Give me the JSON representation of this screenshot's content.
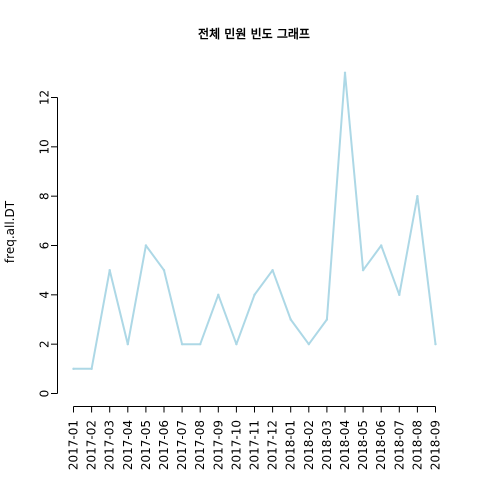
{
  "chart_data": {
    "type": "line",
    "title": "전체 민원 빈도 그래프",
    "xlabel": "",
    "ylabel": "freq.all.DT",
    "categories": [
      "2017-01",
      "2017-02",
      "2017-03",
      "2017-04",
      "2017-05",
      "2017-06",
      "2017-07",
      "2017-08",
      "2017-09",
      "2017-10",
      "2017-11",
      "2017-12",
      "2018-01",
      "2018-02",
      "2018-03",
      "2018-04",
      "2018-05",
      "2018-06",
      "2018-07",
      "2018-08",
      "2018-09"
    ],
    "series": [
      {
        "values": [
          1,
          1,
          5,
          2,
          6,
          5,
          2,
          2,
          4,
          2,
          4,
          5,
          3,
          2,
          3,
          13,
          5,
          6,
          4,
          8,
          2
        ]
      }
    ],
    "ylim": [
      0,
      13
    ],
    "yticks": [
      0,
      2,
      4,
      6,
      8,
      10,
      12
    ],
    "line_color": "#add8e6",
    "grid": false,
    "legend": "none"
  }
}
